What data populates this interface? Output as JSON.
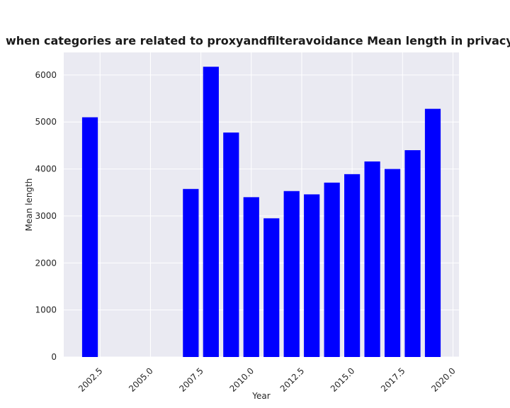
{
  "chart_data": {
    "type": "bar",
    "title": "when categories are related to proxyandfilteravoidance Mean length in privacy policies by Year",
    "xlabel": "Year",
    "ylabel": "Mean length",
    "bar_color": "#0000ff",
    "background_color": "#eaeaf2",
    "grid_color": "#ffffff",
    "grid": true,
    "x": [
      2002,
      2007,
      2008,
      2009,
      2010,
      2011,
      2012,
      2013,
      2014,
      2015,
      2016,
      2017,
      2018,
      2019
    ],
    "values": [
      5100,
      3575,
      6175,
      4775,
      3400,
      2950,
      3530,
      3460,
      3710,
      3890,
      4160,
      4000,
      4400,
      5280
    ],
    "xlim": [
      2000.7,
      2020.3
    ],
    "ylim": [
      0,
      6480
    ],
    "xticks": [
      2002.5,
      2005.0,
      2007.5,
      2010.0,
      2012.5,
      2015.0,
      2017.5,
      2020.0
    ],
    "xtick_labels": [
      "2002.5",
      "2005.0",
      "2007.5",
      "2010.0",
      "2012.5",
      "2015.0",
      "2017.5",
      "2020.0"
    ],
    "yticks": [
      0,
      1000,
      2000,
      3000,
      4000,
      5000,
      6000
    ],
    "ytick_labels": [
      "0",
      "1000",
      "2000",
      "3000",
      "4000",
      "5000",
      "6000"
    ]
  }
}
